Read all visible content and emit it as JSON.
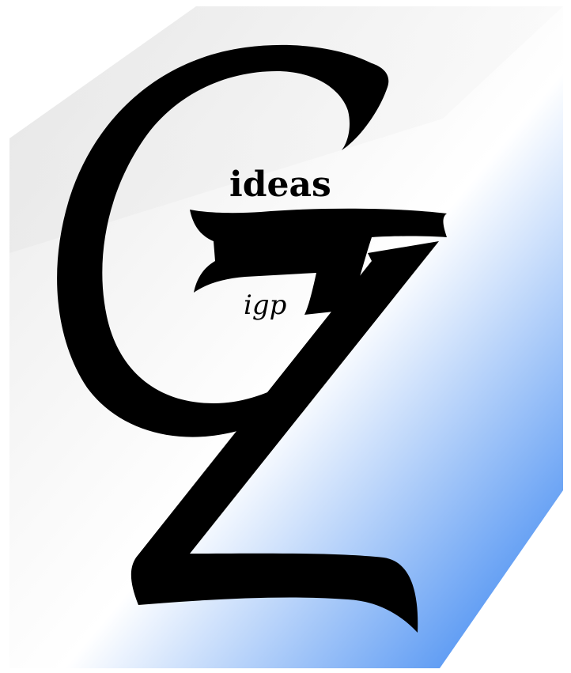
{
  "logo": {
    "tagline": "ideas",
    "monogram_sub": "igp",
    "monogram_letters": "GZ"
  },
  "colors": {
    "background": "#ffffff",
    "block_top_light": "#f2f2f2",
    "block_face_light": "#e6e6e6",
    "gradient_white": "#ffffff",
    "gradient_blue": "#2e7ef0",
    "letter_fill": "#000000"
  }
}
